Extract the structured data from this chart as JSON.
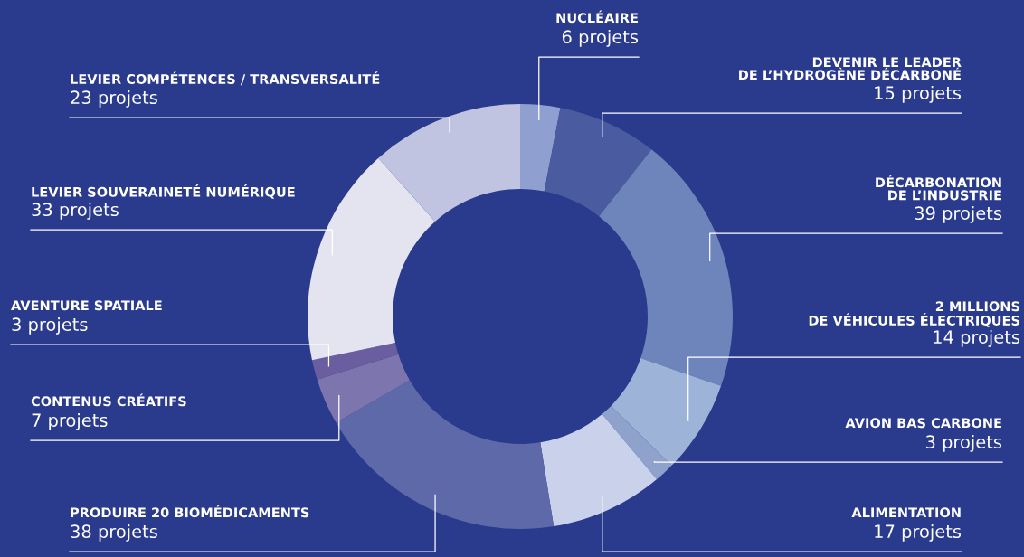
{
  "chart_data": {
    "type": "donut",
    "categories": [
      "NUCLÉAIRE",
      "DEVENIR LE LEADER\nDE L’HYDROGÈNE DÉCARBONÉ",
      "DÉCARBONATION\nDE L’INDUSTRIE",
      "2 MILLIONS\nDE VÉHICULES ÉLECTRIQUES",
      "AVION BAS CARBONE",
      "ALIMENTATION",
      "PRODUIRE 20 BIOMÉDICAMENTS",
      "CONTENUS CRÉATIFS",
      "AVENTURE SPATIALE",
      "LEVIER SOUVERAINETÉ NUMÉRIQUE",
      "LEVIER COMPÉTENCES / TRANSVERSALITÉ"
    ],
    "values": [
      6,
      15,
      39,
      14,
      3,
      17,
      38,
      7,
      3,
      33,
      23
    ],
    "value_labels": [
      "6 projets",
      "15 projets",
      "39 projets",
      "14 projets",
      "3 projets",
      "17 projets",
      "38 projets",
      "7 projets",
      "3 projets",
      "33 projets",
      "23 projets"
    ],
    "colors": [
      "#8f9fcf",
      "#4a5ba0",
      "#6e85bb",
      "#9db4d8",
      "#8fa2cc",
      "#c9d2ea",
      "#5d69a8",
      "#7d75ad",
      "#6a5ea0",
      "#e4e4f0",
      "#c0c4e0"
    ],
    "legend": false
  }
}
